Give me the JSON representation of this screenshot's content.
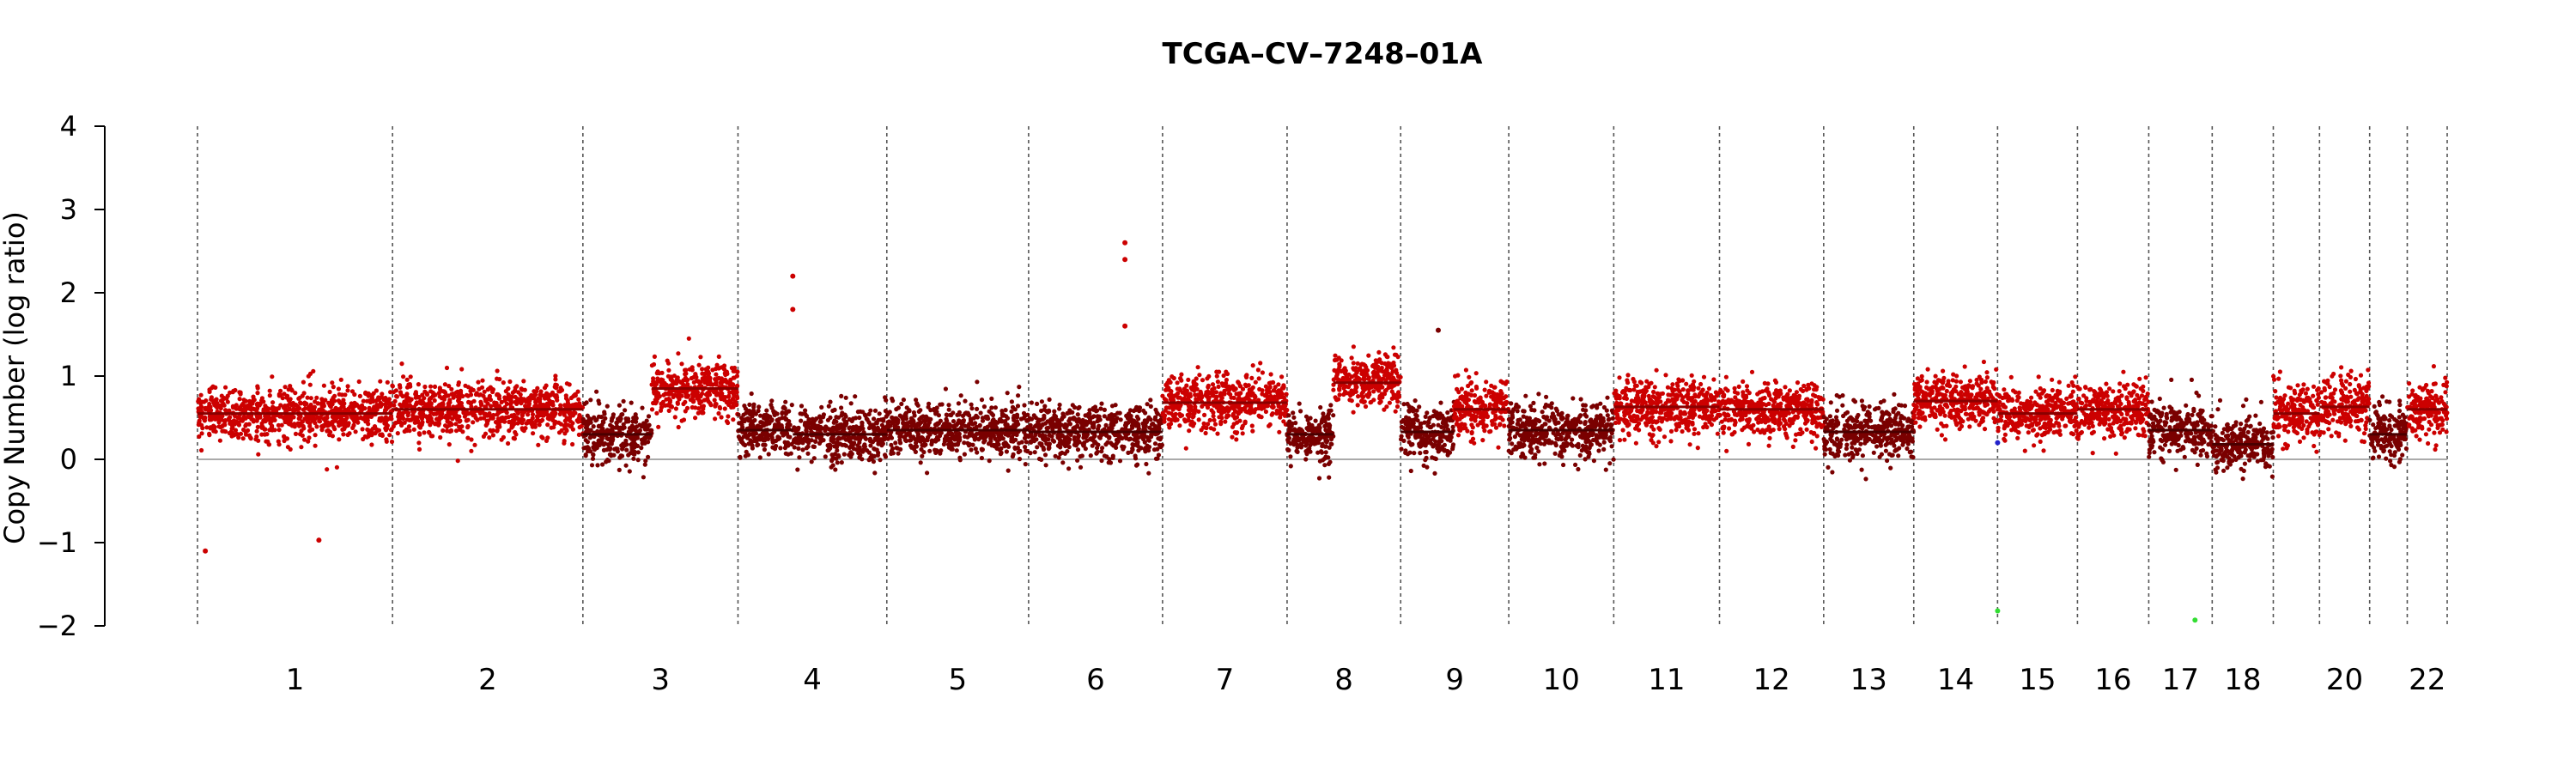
{
  "chart_data": {
    "type": "scatter",
    "title": "TCGA–CV–7248–01A",
    "xlabel": "",
    "ylabel": "Copy Number (log ratio)",
    "ylim": [
      -2,
      4
    ],
    "yticks": [
      -2,
      -1,
      0,
      1,
      2,
      3,
      4
    ],
    "ytick_labels": [
      "−2",
      "−1",
      "0",
      "1",
      "2",
      "3",
      "4"
    ],
    "reference_line": 0,
    "grid": "dashed vertical chromosome boundaries",
    "colors": {
      "gain": "#cc0000",
      "neutral": "#7a0000",
      "reference": "#aaaaaa",
      "boundary": "#555555",
      "outlier_green": "#33dd33",
      "outlier_blue": "#2222cc"
    },
    "chromosome_labels": [
      "1",
      "2",
      "3",
      "4",
      "5",
      "6",
      "7",
      "8",
      "9",
      "10",
      "11",
      "12",
      "13",
      "14",
      "15",
      "16",
      "17",
      "18",
      "20",
      "22"
    ],
    "chromosomes": [
      {
        "chrom": "1",
        "start": 0,
        "end": 249,
        "segments": [
          {
            "start": 0,
            "end": 249,
            "value": 0.55,
            "level": "gain"
          }
        ]
      },
      {
        "chrom": "2",
        "start": 249,
        "end": 492,
        "segments": [
          {
            "start": 249,
            "end": 492,
            "value": 0.6,
            "level": "gain"
          }
        ]
      },
      {
        "chrom": "3",
        "start": 492,
        "end": 690,
        "segments": [
          {
            "start": 492,
            "end": 580,
            "value": 0.3,
            "level": "neutral"
          },
          {
            "start": 580,
            "end": 690,
            "value": 0.85,
            "level": "gain"
          }
        ]
      },
      {
        "chrom": "4",
        "start": 690,
        "end": 880,
        "segments": [
          {
            "start": 690,
            "end": 760,
            "value": 0.35,
            "level": "neutral"
          },
          {
            "start": 760,
            "end": 880,
            "value": 0.3,
            "level": "neutral"
          }
        ]
      },
      {
        "chrom": "5",
        "start": 880,
        "end": 1061,
        "segments": [
          {
            "start": 880,
            "end": 1061,
            "value": 0.35,
            "level": "neutral"
          }
        ]
      },
      {
        "chrom": "6",
        "start": 1061,
        "end": 1232,
        "segments": [
          {
            "start": 1061,
            "end": 1232,
            "value": 0.33,
            "level": "neutral"
          }
        ]
      },
      {
        "chrom": "7",
        "start": 1232,
        "end": 1391,
        "segments": [
          {
            "start": 1232,
            "end": 1391,
            "value": 0.68,
            "level": "gain"
          }
        ]
      },
      {
        "chrom": "8",
        "start": 1391,
        "end": 1536,
        "segments": [
          {
            "start": 1391,
            "end": 1450,
            "value": 0.3,
            "level": "neutral"
          },
          {
            "start": 1450,
            "end": 1536,
            "value": 0.92,
            "level": "gain"
          }
        ]
      },
      {
        "chrom": "9",
        "start": 1536,
        "end": 1674,
        "segments": [
          {
            "start": 1536,
            "end": 1604,
            "value": 0.33,
            "level": "neutral"
          },
          {
            "start": 1604,
            "end": 1674,
            "value": 0.6,
            "level": "gain"
          }
        ]
      },
      {
        "chrom": "10",
        "start": 1674,
        "end": 1808,
        "segments": [
          {
            "start": 1674,
            "end": 1808,
            "value": 0.35,
            "level": "neutral"
          }
        ]
      },
      {
        "chrom": "11",
        "start": 1808,
        "end": 1943,
        "segments": [
          {
            "start": 1808,
            "end": 1943,
            "value": 0.63,
            "level": "gain"
          }
        ]
      },
      {
        "chrom": "12",
        "start": 1943,
        "end": 2076,
        "segments": [
          {
            "start": 1943,
            "end": 2076,
            "value": 0.6,
            "level": "gain"
          }
        ]
      },
      {
        "chrom": "13",
        "start": 2076,
        "end": 2191,
        "segments": [
          {
            "start": 2076,
            "end": 2191,
            "value": 0.33,
            "level": "neutral"
          }
        ]
      },
      {
        "chrom": "14",
        "start": 2191,
        "end": 2298,
        "segments": [
          {
            "start": 2191,
            "end": 2298,
            "value": 0.7,
            "level": "gain"
          }
        ]
      },
      {
        "chrom": "15",
        "start": 2298,
        "end": 2400,
        "segments": [
          {
            "start": 2298,
            "end": 2400,
            "value": 0.55,
            "level": "gain"
          }
        ]
      },
      {
        "chrom": "16",
        "start": 2400,
        "end": 2491,
        "segments": [
          {
            "start": 2400,
            "end": 2491,
            "value": 0.6,
            "level": "gain"
          }
        ]
      },
      {
        "chrom": "17",
        "start": 2491,
        "end": 2572,
        "segments": [
          {
            "start": 2491,
            "end": 2572,
            "value": 0.35,
            "level": "neutral"
          }
        ]
      },
      {
        "chrom": "18",
        "start": 2572,
        "end": 2650,
        "segments": [
          {
            "start": 2572,
            "end": 2650,
            "value": 0.18,
            "level": "neutral"
          }
        ]
      },
      {
        "chrom": "19",
        "start": 2650,
        "end": 2709,
        "segments": [
          {
            "start": 2650,
            "end": 2709,
            "value": 0.55,
            "level": "gain"
          }
        ]
      },
      {
        "chrom": "20",
        "start": 2709,
        "end": 2773,
        "segments": [
          {
            "start": 2709,
            "end": 2773,
            "value": 0.63,
            "level": "gain"
          }
        ]
      },
      {
        "chrom": "21",
        "start": 2773,
        "end": 2821,
        "segments": [
          {
            "start": 2773,
            "end": 2821,
            "value": 0.3,
            "level": "neutral"
          }
        ]
      },
      {
        "chrom": "22",
        "start": 2821,
        "end": 2872,
        "segments": [
          {
            "start": 2821,
            "end": 2872,
            "value": 0.6,
            "level": "gain"
          }
        ]
      }
    ],
    "outliers": [
      {
        "x": 10,
        "y": -1.1,
        "level": "gain"
      },
      {
        "x": 155,
        "y": -0.97,
        "level": "gain"
      },
      {
        "x": 760,
        "y": 2.2,
        "level": "gain"
      },
      {
        "x": 760,
        "y": 1.8,
        "level": "gain"
      },
      {
        "x": 1184,
        "y": 2.6,
        "level": "gain"
      },
      {
        "x": 1184,
        "y": 2.4,
        "level": "gain"
      },
      {
        "x": 1184,
        "y": 1.6,
        "level": "gain"
      },
      {
        "x": 1584,
        "y": 1.55,
        "level": "neutral"
      },
      {
        "x": 2298,
        "y": -1.82,
        "level": "outlier_green"
      },
      {
        "x": 2550,
        "y": -1.93,
        "level": "outlier_green"
      },
      {
        "x": 2298,
        "y": 0.2,
        "level": "outlier_blue"
      }
    ]
  }
}
